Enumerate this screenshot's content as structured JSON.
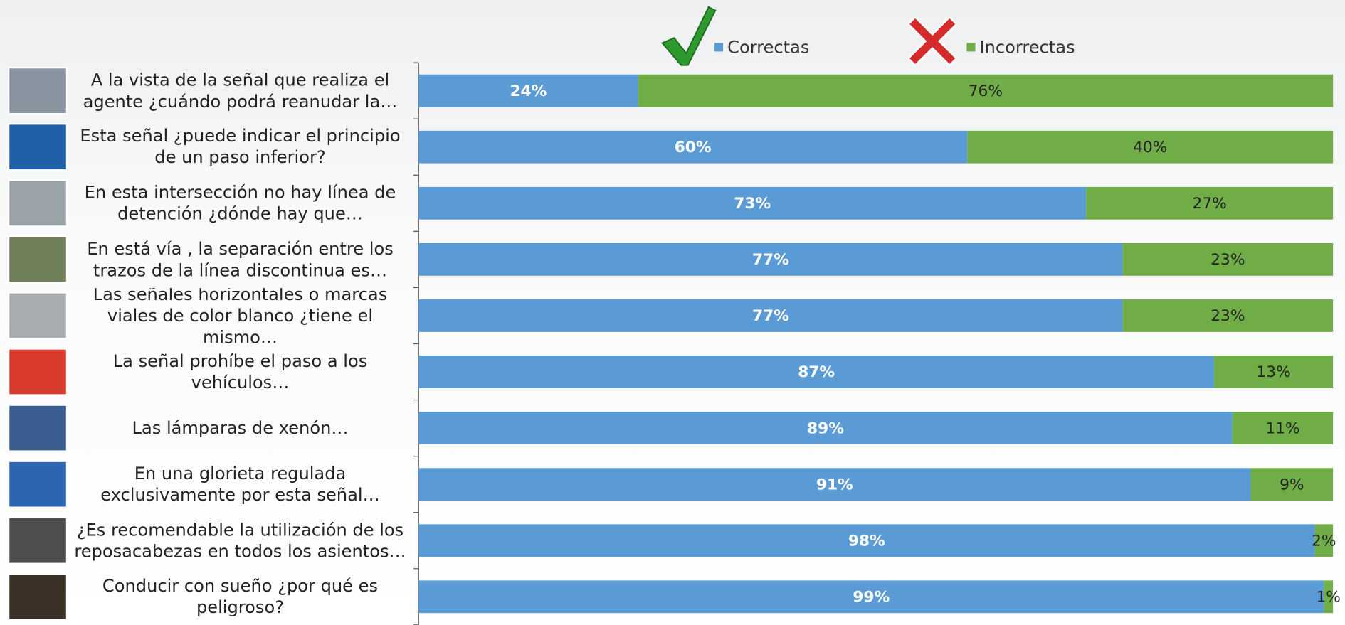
{
  "chart_data": {
    "type": "stacked_bar_horizontal",
    "categories": [
      "A la vista de la señal que realiza el agente ¿cuándo podrá reanudar la…",
      "Esta señal ¿puede indicar el principio de un paso inferior?",
      "En esta intersección no hay línea de detención ¿dónde hay que…",
      "En está vía , la separación entre los trazos de la línea discontinua es…",
      "Las señales horizontales o marcas viales de color blanco ¿tiene el mismo…",
      "La señal prohíbe el paso a los vehículos…",
      "Las lámparas de xenón…",
      "En una glorieta regulada exclusivamente por esta señal…",
      "¿Es recomendable la utilización de los reposacabezas en todos los asientos…",
      "Conducir con sueño ¿por qué es peligroso?"
    ],
    "series": [
      {
        "name": "Correctas",
        "color": "#5b9bd5",
        "values": [
          24,
          60,
          73,
          77,
          77,
          87,
          89,
          91,
          98,
          99
        ],
        "value_labels": [
          "24%",
          "60%",
          "73%",
          "77%",
          "77%",
          "87%",
          "89%",
          "91%",
          "98%",
          "99%"
        ]
      },
      {
        "name": "Incorrectas",
        "color": "#70ad47",
        "values": [
          76,
          40,
          27,
          23,
          23,
          13,
          11,
          9,
          2,
          1
        ],
        "value_labels": [
          "76%",
          "40%",
          "27%",
          "23%",
          "23%",
          "13%",
          "11%",
          "9%",
          "2%",
          "1%"
        ]
      }
    ],
    "xlim": [
      0,
      100
    ]
  }
}
